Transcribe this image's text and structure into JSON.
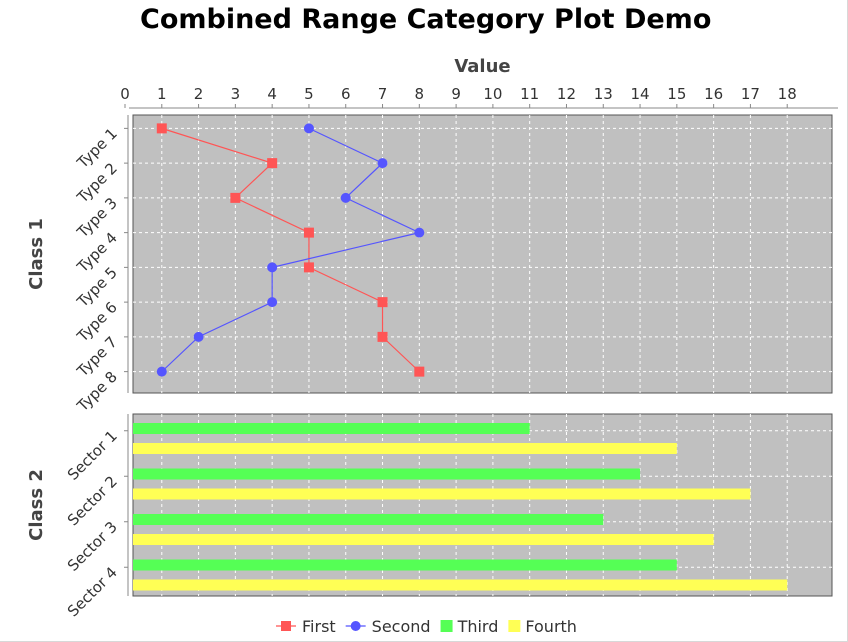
{
  "title": "Combined Range Category Plot Demo",
  "chart_data": {
    "type": "combined-range-category",
    "title": "Combined Range Category Plot Demo",
    "value_axis": {
      "label": "Value",
      "range": [
        0,
        19
      ],
      "ticks": [
        0,
        1,
        2,
        3,
        4,
        5,
        6,
        7,
        8,
        9,
        10,
        11,
        12,
        13,
        14,
        15,
        16,
        17,
        18
      ],
      "position": "top"
    },
    "grid": true,
    "legend_placement": "bottom",
    "subplots": [
      {
        "domain_label": "Class 1",
        "type": "line",
        "categories": [
          "Type 1",
          "Type 2",
          "Type 3",
          "Type 4",
          "Type 5",
          "Type 6",
          "Type 7",
          "Type 8"
        ],
        "series": [
          {
            "name": "First",
            "color": "#ff5555",
            "marker": "square",
            "values": [
              1,
              4,
              3,
              5,
              5,
              7,
              7,
              8
            ]
          },
          {
            "name": "Second",
            "color": "#5555ff",
            "marker": "circle",
            "values": [
              5,
              7,
              6,
              8,
              4,
              4,
              2,
              1
            ]
          }
        ]
      },
      {
        "domain_label": "Class 2",
        "type": "bar",
        "categories": [
          "Sector 1",
          "Sector 2",
          "Sector 3",
          "Sector 4"
        ],
        "series": [
          {
            "name": "Third",
            "color": "#55ff55",
            "values": [
              11,
              14,
              13,
              15
            ]
          },
          {
            "name": "Fourth",
            "color": "#ffff55",
            "values": [
              15,
              17,
              16,
              18
            ]
          }
        ]
      }
    ],
    "legend": [
      {
        "name": "First",
        "color": "#ff5555",
        "symbol": "line-square"
      },
      {
        "name": "Second",
        "color": "#5555ff",
        "symbol": "line-circle"
      },
      {
        "name": "Third",
        "color": "#55ff55",
        "symbol": "box"
      },
      {
        "name": "Fourth",
        "color": "#ffff55",
        "symbol": "box"
      }
    ]
  }
}
